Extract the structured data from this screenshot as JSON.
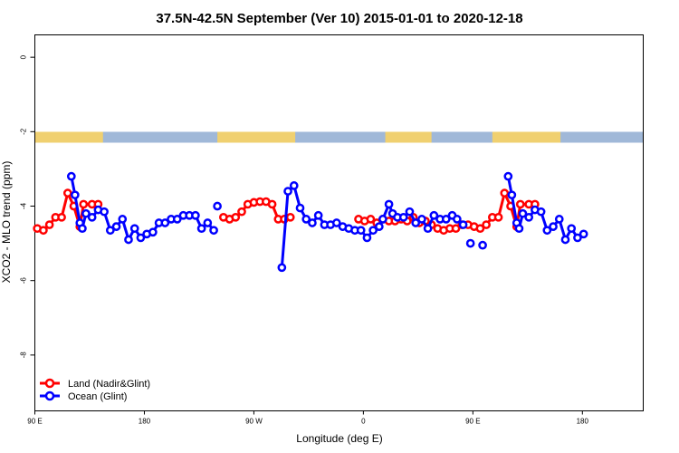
{
  "chart_data": {
    "type": "line",
    "title": "37.5N-42.5N September (Ver 10)   2015-01-01 to 2020-12-18",
    "xlabel": "Longitude (deg E)",
    "ylabel": "XCO2 - MLO trend (ppm)",
    "xlim": [
      90,
      590
    ],
    "ylim": [
      -9.5,
      0.6
    ],
    "x_ticks": [
      {
        "value": 90,
        "label": "90 E"
      },
      {
        "value": 180,
        "label": "180"
      },
      {
        "value": 270,
        "label": "90 W"
      },
      {
        "value": 360,
        "label": "0"
      },
      {
        "value": 450,
        "label": "90 E"
      },
      {
        "value": 540,
        "label": "180"
      }
    ],
    "y_ticks": [
      0,
      -2,
      -4,
      -6,
      -8
    ],
    "land_band": {
      "y": -2.15,
      "land_color": "#f0d070",
      "ocean_color": "#a0b8d8",
      "land_segments": [
        [
          90,
          146
        ],
        [
          240,
          304
        ],
        [
          378,
          416
        ],
        [
          466,
          522
        ]
      ]
    },
    "legend_position": "bottom-left",
    "series": [
      {
        "name": "Land (Nadir&Glint)",
        "color": "#ff0000",
        "segments": [
          [
            [
              92,
              -4.6
            ],
            [
              97,
              -4.65
            ],
            [
              102,
              -4.5
            ],
            [
              107,
              -4.3
            ],
            [
              112,
              -4.3
            ],
            [
              117,
              -3.65
            ],
            [
              122,
              -4.0
            ],
            [
              127,
              -4.55
            ],
            [
              130,
              -3.95
            ],
            [
              137,
              -3.95
            ],
            [
              142,
              -3.95
            ]
          ],
          [
            [
              245,
              -4.3
            ],
            [
              250,
              -4.35
            ],
            [
              255,
              -4.3
            ],
            [
              260,
              -4.15
            ],
            [
              265,
              -3.95
            ],
            [
              270,
              -3.9
            ],
            [
              275,
              -3.88
            ],
            [
              280,
              -3.88
            ],
            [
              285,
              -3.95
            ],
            [
              290,
              -4.35
            ],
            [
              295,
              -4.35
            ],
            [
              300,
              -4.3
            ]
          ],
          [
            [
              356,
              -4.35
            ],
            [
              361,
              -4.4
            ],
            [
              366,
              -4.35
            ],
            [
              371,
              -4.45
            ],
            [
              376,
              -4.35
            ],
            [
              381,
              -4.4
            ],
            [
              386,
              -4.4
            ],
            [
              391,
              -4.35
            ],
            [
              396,
              -4.4
            ],
            [
              401,
              -4.3
            ],
            [
              406,
              -4.45
            ],
            [
              411,
              -4.4
            ],
            [
              416,
              -4.5
            ],
            [
              421,
              -4.6
            ],
            [
              426,
              -4.65
            ],
            [
              431,
              -4.6
            ],
            [
              436,
              -4.6
            ],
            [
              441,
              -4.5
            ],
            [
              446,
              -4.5
            ],
            [
              451,
              -4.55
            ],
            [
              456,
              -4.6
            ],
            [
              461,
              -4.5
            ],
            [
              466,
              -4.3
            ],
            [
              471,
              -4.3
            ],
            [
              476,
              -3.65
            ],
            [
              481,
              -4.0
            ],
            [
              486,
              -4.55
            ],
            [
              489,
              -3.95
            ],
            [
              496,
              -3.95
            ],
            [
              501,
              -3.95
            ]
          ]
        ]
      },
      {
        "name": "Ocean (Glint)",
        "color": "#0000ff",
        "segments": [
          [
            [
              120,
              -3.2
            ],
            [
              123,
              -3.7
            ],
            [
              127,
              -4.45
            ],
            [
              129,
              -4.6
            ],
            [
              132,
              -4.2
            ],
            [
              137,
              -4.3
            ],
            [
              142,
              -4.1
            ],
            [
              147,
              -4.15
            ],
            [
              152,
              -4.65
            ],
            [
              157,
              -4.55
            ],
            [
              162,
              -4.35
            ],
            [
              167,
              -4.9
            ],
            [
              172,
              -4.6
            ],
            [
              177,
              -4.85
            ],
            [
              182,
              -4.75
            ],
            [
              187,
              -4.7
            ],
            [
              192,
              -4.45
            ],
            [
              197,
              -4.45
            ],
            [
              202,
              -4.35
            ],
            [
              207,
              -4.35
            ],
            [
              212,
              -4.25
            ],
            [
              217,
              -4.25
            ],
            [
              222,
              -4.25
            ],
            [
              227,
              -4.6
            ],
            [
              232,
              -4.45
            ],
            [
              237,
              -4.65
            ]
          ],
          [
            [
              240,
              -4.0
            ]
          ],
          [
            [
              293,
              -5.65
            ],
            [
              298,
              -3.6
            ],
            [
              303,
              -3.45
            ],
            [
              308,
              -4.05
            ],
            [
              313,
              -4.35
            ],
            [
              318,
              -4.45
            ],
            [
              323,
              -4.25
            ],
            [
              328,
              -4.5
            ],
            [
              333,
              -4.5
            ],
            [
              338,
              -4.45
            ],
            [
              343,
              -4.55
            ],
            [
              348,
              -4.6
            ],
            [
              353,
              -4.65
            ],
            [
              358,
              -4.65
            ],
            [
              363,
              -4.85
            ],
            [
              368,
              -4.65
            ],
            [
              373,
              -4.55
            ],
            [
              376,
              -4.35
            ],
            [
              381,
              -3.95
            ],
            [
              384,
              -4.2
            ],
            [
              388,
              -4.3
            ],
            [
              393,
              -4.3
            ],
            [
              398,
              -4.15
            ],
            [
              403,
              -4.45
            ],
            [
              408,
              -4.35
            ],
            [
              413,
              -4.6
            ],
            [
              418,
              -4.25
            ],
            [
              423,
              -4.35
            ],
            [
              428,
              -4.35
            ],
            [
              433,
              -4.25
            ],
            [
              437,
              -4.35
            ],
            [
              442,
              -4.5
            ]
          ],
          [
            [
              448,
              -5.0
            ]
          ],
          [
            [
              458,
              -5.05
            ]
          ],
          [
            [
              479,
              -3.2
            ],
            [
              482,
              -3.7
            ],
            [
              486,
              -4.45
            ],
            [
              488,
              -4.6
            ],
            [
              491,
              -4.2
            ],
            [
              496,
              -4.3
            ],
            [
              501,
              -4.1
            ],
            [
              506,
              -4.15
            ],
            [
              511,
              -4.65
            ],
            [
              516,
              -4.55
            ],
            [
              521,
              -4.35
            ],
            [
              526,
              -4.9
            ],
            [
              531,
              -4.6
            ],
            [
              536,
              -4.85
            ],
            [
              541,
              -4.75
            ]
          ]
        ]
      }
    ]
  }
}
